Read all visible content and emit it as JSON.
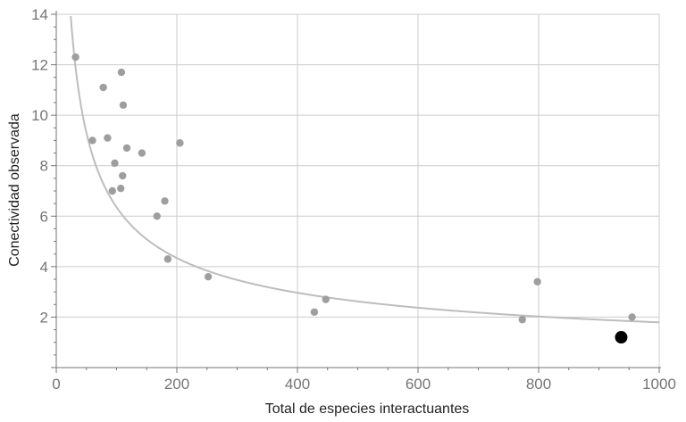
{
  "chart_data": {
    "type": "scatter",
    "title": "",
    "xlabel": "Total de especies interactuantes",
    "ylabel": "Conectividad observada",
    "xlim": [
      0,
      1000
    ],
    "ylim": [
      0,
      14
    ],
    "x_ticks": [
      0,
      200,
      400,
      600,
      800,
      1000
    ],
    "y_ticks": [
      2,
      4,
      6,
      8,
      10,
      12,
      14
    ],
    "grid": true,
    "colors": {
      "points": "#9e9e9e",
      "highlight": "#000000",
      "curve": "#bdbdbd",
      "grid": "#cccccc",
      "axis": "#757575"
    },
    "series": [
      {
        "points": [
          {
            "x": 32,
            "y": 12.3
          },
          {
            "x": 60,
            "y": 9.0
          },
          {
            "x": 78,
            "y": 11.1
          },
          {
            "x": 85,
            "y": 9.1
          },
          {
            "x": 93,
            "y": 7.0
          },
          {
            "x": 97,
            "y": 8.1
          },
          {
            "x": 107,
            "y": 7.1
          },
          {
            "x": 108,
            "y": 11.7
          },
          {
            "x": 110,
            "y": 7.6
          },
          {
            "x": 111,
            "y": 10.4
          },
          {
            "x": 117,
            "y": 8.7
          },
          {
            "x": 142,
            "y": 8.5
          },
          {
            "x": 167,
            "y": 6.0
          },
          {
            "x": 180,
            "y": 6.6
          },
          {
            "x": 185,
            "y": 4.3
          },
          {
            "x": 205,
            "y": 8.9
          },
          {
            "x": 252,
            "y": 3.6
          },
          {
            "x": 428,
            "y": 2.2
          },
          {
            "x": 447,
            "y": 2.7
          },
          {
            "x": 773,
            "y": 1.9
          },
          {
            "x": 798,
            "y": 3.4
          },
          {
            "x": 955,
            "y": 2.0
          }
        ]
      },
      {
        "points": [
          {
            "x": 937,
            "y": 1.2
          }
        ]
      }
    ],
    "fit_curve": {
      "form": "y = a * x^b",
      "a": 80,
      "b": -0.55
    }
  }
}
